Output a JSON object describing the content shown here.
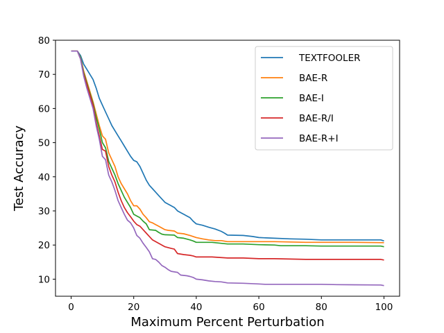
{
  "chart_data": {
    "type": "line",
    "title": "",
    "xlabel": "Maximum Percent Perturbation",
    "ylabel": "Test Accuracy",
    "xlim": [
      -5,
      105
    ],
    "ylim": [
      5,
      80
    ],
    "xticks": [
      0,
      20,
      40,
      60,
      80,
      100
    ],
    "yticks": [
      10,
      20,
      30,
      40,
      50,
      60,
      70,
      80
    ],
    "grid": false,
    "legend_position": "top-right",
    "series": [
      {
        "name": "TEXTFOOLER",
        "color": "#1f77b4",
        "points": [
          [
            0,
            76.8
          ],
          [
            2,
            76.8
          ],
          [
            3,
            75.5
          ],
          [
            4,
            73
          ],
          [
            5,
            71.5
          ],
          [
            6,
            70
          ],
          [
            7,
            68.5
          ],
          [
            8,
            66
          ],
          [
            9,
            63
          ],
          [
            10,
            61
          ],
          [
            11,
            59
          ],
          [
            12,
            57
          ],
          [
            13,
            55
          ],
          [
            14,
            53.5
          ],
          [
            15,
            52
          ],
          [
            16,
            50.5
          ],
          [
            17,
            49
          ],
          [
            18,
            47.5
          ],
          [
            19,
            46
          ],
          [
            20,
            44.8
          ],
          [
            21,
            44.4
          ],
          [
            22,
            43
          ],
          [
            23,
            41
          ],
          [
            24,
            39
          ],
          [
            25,
            37.5
          ],
          [
            26,
            36.5
          ],
          [
            27,
            35.5
          ],
          [
            28,
            34.5
          ],
          [
            29,
            33.5
          ],
          [
            30,
            32.5
          ],
          [
            32,
            31.5
          ],
          [
            33,
            31
          ],
          [
            34,
            30
          ],
          [
            35,
            29.5
          ],
          [
            36,
            29
          ],
          [
            37,
            28.5
          ],
          [
            38,
            28
          ],
          [
            39,
            27
          ],
          [
            40,
            26.2
          ],
          [
            42,
            25.8
          ],
          [
            44,
            25.2
          ],
          [
            46,
            24.7
          ],
          [
            48,
            24
          ],
          [
            49,
            23.5
          ],
          [
            50,
            22.9
          ],
          [
            55,
            22.8
          ],
          [
            58,
            22.5
          ],
          [
            60,
            22.2
          ],
          [
            65,
            22
          ],
          [
            70,
            21.8
          ],
          [
            75,
            21.7
          ],
          [
            80,
            21.5
          ],
          [
            90,
            21.5
          ],
          [
            99,
            21.5
          ],
          [
            100,
            21.2
          ]
        ]
      },
      {
        "name": "BAE-R",
        "color": "#ff7f0e",
        "points": [
          [
            0,
            76.8
          ],
          [
            2,
            76.8
          ],
          [
            3,
            75
          ],
          [
            4,
            71
          ],
          [
            5,
            68
          ],
          [
            6,
            65
          ],
          [
            7,
            62
          ],
          [
            8,
            58.5
          ],
          [
            9,
            55
          ],
          [
            10,
            52
          ],
          [
            11,
            51
          ],
          [
            12,
            47
          ],
          [
            13,
            45
          ],
          [
            14,
            43
          ],
          [
            15,
            40
          ],
          [
            16,
            38
          ],
          [
            17,
            36.5
          ],
          [
            18,
            35
          ],
          [
            19,
            33
          ],
          [
            20,
            31.5
          ],
          [
            21,
            31.5
          ],
          [
            22,
            30.5
          ],
          [
            23,
            29
          ],
          [
            24,
            28
          ],
          [
            25,
            26.8
          ],
          [
            26,
            26.5
          ],
          [
            27,
            26
          ],
          [
            28,
            25.5
          ],
          [
            29,
            25
          ],
          [
            30,
            24.5
          ],
          [
            31,
            24.3
          ],
          [
            33,
            24.1
          ],
          [
            34,
            23.5
          ],
          [
            36,
            23.3
          ],
          [
            38,
            22.8
          ],
          [
            40,
            22.2
          ],
          [
            42,
            21.8
          ],
          [
            44,
            21.5
          ],
          [
            46,
            21.3
          ],
          [
            48,
            21.3
          ],
          [
            50,
            21
          ],
          [
            55,
            21
          ],
          [
            60,
            21
          ],
          [
            65,
            21
          ],
          [
            70,
            20.9
          ],
          [
            75,
            20.8
          ],
          [
            80,
            20.8
          ],
          [
            90,
            20.8
          ],
          [
            100,
            20.7
          ]
        ]
      },
      {
        "name": "BAE-I",
        "color": "#2ca02c",
        "points": [
          [
            0,
            76.8
          ],
          [
            2,
            76.8
          ],
          [
            3,
            75
          ],
          [
            4,
            70.5
          ],
          [
            5,
            67.5
          ],
          [
            6,
            64.5
          ],
          [
            7,
            61.5
          ],
          [
            8,
            57.5
          ],
          [
            9,
            54
          ],
          [
            10,
            50
          ],
          [
            11,
            48.5
          ],
          [
            12,
            44.5
          ],
          [
            13,
            42.5
          ],
          [
            14,
            40.5
          ],
          [
            15,
            38
          ],
          [
            16,
            36
          ],
          [
            17,
            34
          ],
          [
            18,
            32.5
          ],
          [
            19,
            31
          ],
          [
            20,
            29
          ],
          [
            21,
            28.5
          ],
          [
            22,
            28
          ],
          [
            23,
            27
          ],
          [
            24,
            26.2
          ],
          [
            25,
            24.5
          ],
          [
            27,
            24.3
          ],
          [
            28,
            23.7
          ],
          [
            29,
            23.2
          ],
          [
            30,
            23
          ],
          [
            33,
            22.9
          ],
          [
            34,
            22.2
          ],
          [
            36,
            22
          ],
          [
            38,
            21.5
          ],
          [
            39,
            21.2
          ],
          [
            40,
            20.8
          ],
          [
            45,
            20.8
          ],
          [
            50,
            20.3
          ],
          [
            55,
            20.3
          ],
          [
            60,
            20.1
          ],
          [
            65,
            20
          ],
          [
            67,
            19.8
          ],
          [
            75,
            19.8
          ],
          [
            80,
            19.7
          ],
          [
            90,
            19.7
          ],
          [
            99,
            19.7
          ],
          [
            100,
            19.5
          ]
        ]
      },
      {
        "name": "BAE-R/I",
        "color": "#d62728",
        "points": [
          [
            0,
            76.8
          ],
          [
            2,
            76.8
          ],
          [
            3,
            74.5
          ],
          [
            4,
            70
          ],
          [
            5,
            67
          ],
          [
            6,
            64
          ],
          [
            7,
            61
          ],
          [
            8,
            56
          ],
          [
            9,
            52
          ],
          [
            10,
            48
          ],
          [
            11,
            47.5
          ],
          [
            12,
            43
          ],
          [
            13,
            40.5
          ],
          [
            14,
            38.5
          ],
          [
            15,
            35.5
          ],
          [
            16,
            33
          ],
          [
            17,
            31
          ],
          [
            18,
            29.5
          ],
          [
            19,
            28.3
          ],
          [
            20,
            27
          ],
          [
            21,
            26
          ],
          [
            22,
            25.5
          ],
          [
            23,
            24.5
          ],
          [
            24,
            23.5
          ],
          [
            25,
            22.5
          ],
          [
            26,
            21.5
          ],
          [
            27,
            21
          ],
          [
            28,
            20.5
          ],
          [
            29,
            20
          ],
          [
            30,
            19.5
          ],
          [
            32,
            19
          ],
          [
            33,
            18.8
          ],
          [
            34,
            17.5
          ],
          [
            36,
            17.2
          ],
          [
            38,
            17
          ],
          [
            39,
            16.8
          ],
          [
            40,
            16.5
          ],
          [
            45,
            16.5
          ],
          [
            50,
            16.2
          ],
          [
            55,
            16.2
          ],
          [
            60,
            16
          ],
          [
            65,
            16
          ],
          [
            70,
            15.9
          ],
          [
            75,
            15.8
          ],
          [
            80,
            15.8
          ],
          [
            90,
            15.8
          ],
          [
            99,
            15.8
          ],
          [
            100,
            15.6
          ]
        ]
      },
      {
        "name": "BAE-R+I",
        "color": "#9467bd",
        "points": [
          [
            0,
            76.8
          ],
          [
            2,
            76.8
          ],
          [
            3,
            74.5
          ],
          [
            4,
            69.5
          ],
          [
            5,
            66
          ],
          [
            6,
            63
          ],
          [
            7,
            60
          ],
          [
            8,
            55
          ],
          [
            9,
            51
          ],
          [
            10,
            46
          ],
          [
            11,
            45
          ],
          [
            12,
            40.5
          ],
          [
            13,
            38.5
          ],
          [
            14,
            36
          ],
          [
            15,
            33
          ],
          [
            16,
            31
          ],
          [
            17,
            29
          ],
          [
            18,
            27.3
          ],
          [
            19,
            26.5
          ],
          [
            20,
            25
          ],
          [
            21,
            22.8
          ],
          [
            22,
            22
          ],
          [
            23,
            20.5
          ],
          [
            24,
            19.3
          ],
          [
            25,
            18
          ],
          [
            26,
            16
          ],
          [
            27,
            15.8
          ],
          [
            28,
            15
          ],
          [
            29,
            14
          ],
          [
            30,
            13.5
          ],
          [
            31,
            12.8
          ],
          [
            32,
            12.3
          ],
          [
            34,
            12
          ],
          [
            35,
            11.2
          ],
          [
            37,
            11
          ],
          [
            38,
            10.8
          ],
          [
            39,
            10.5
          ],
          [
            40,
            10
          ],
          [
            42,
            9.8
          ],
          [
            44,
            9.5
          ],
          [
            46,
            9.3
          ],
          [
            48,
            9.2
          ],
          [
            50,
            8.9
          ],
          [
            55,
            8.8
          ],
          [
            60,
            8.6
          ],
          [
            62,
            8.5
          ],
          [
            70,
            8.5
          ],
          [
            80,
            8.5
          ],
          [
            85,
            8.4
          ],
          [
            99,
            8.3
          ],
          [
            100,
            8.1
          ]
        ]
      }
    ]
  }
}
